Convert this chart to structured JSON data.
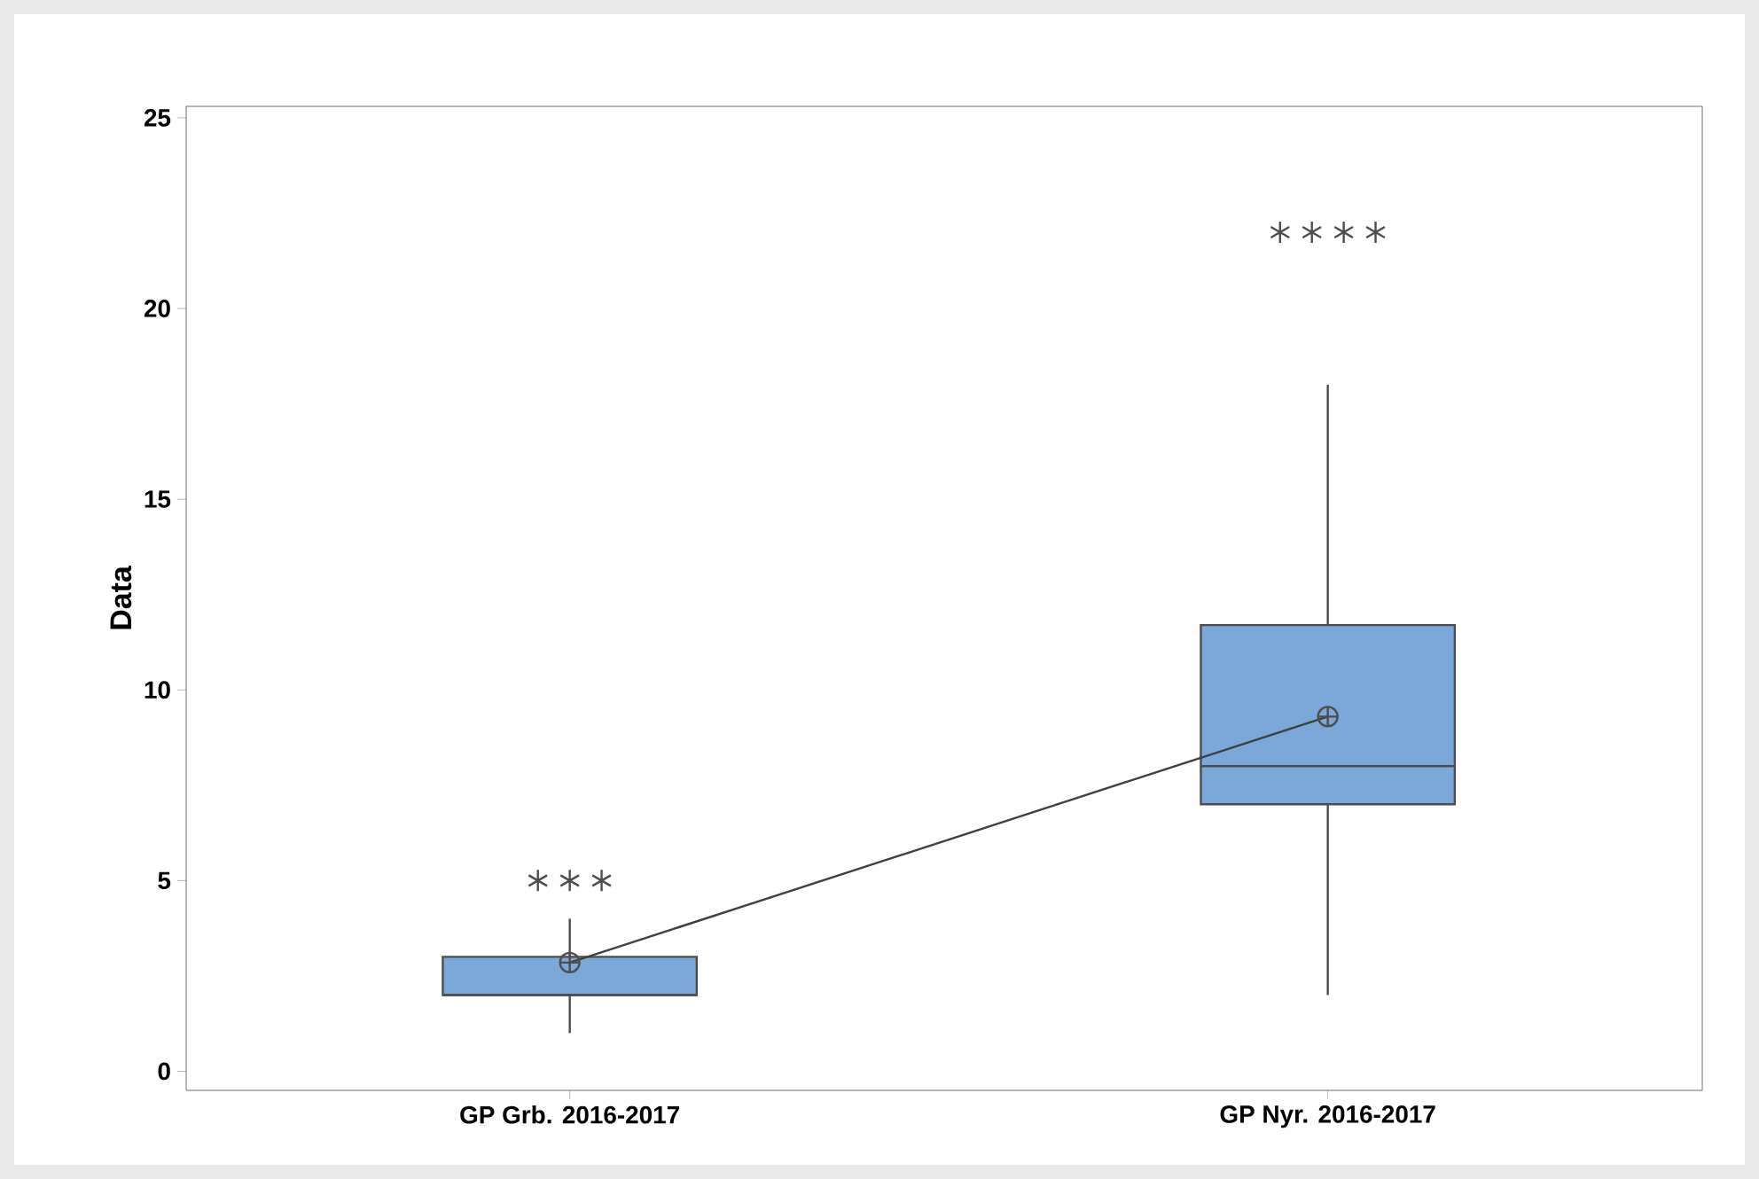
{
  "chart_data": {
    "type": "box",
    "ylabel": "Data",
    "categories": [
      "GP Grb. 2016-2017",
      "GP Nyr. 2016-2017"
    ],
    "color": "#7ba7d9",
    "boxes": [
      {
        "low": 1,
        "q1": 2,
        "median": 2,
        "q3": 3,
        "high": 4,
        "mean": 2.85,
        "outliers": [
          5,
          5,
          5
        ]
      },
      {
        "low": 2,
        "q1": 7,
        "median": 8,
        "q3": 11.7,
        "high": 18,
        "mean": 9.3,
        "outliers": [
          22,
          22,
          22,
          22
        ]
      }
    ],
    "series": [
      {
        "type": "line",
        "values": [
          2.85,
          9.3
        ],
        "color": "#404040"
      }
    ],
    "ylim": [
      -0.5,
      25.3
    ],
    "yticks": [
      0,
      5,
      10,
      15,
      20,
      25
    ],
    "grid": false
  }
}
